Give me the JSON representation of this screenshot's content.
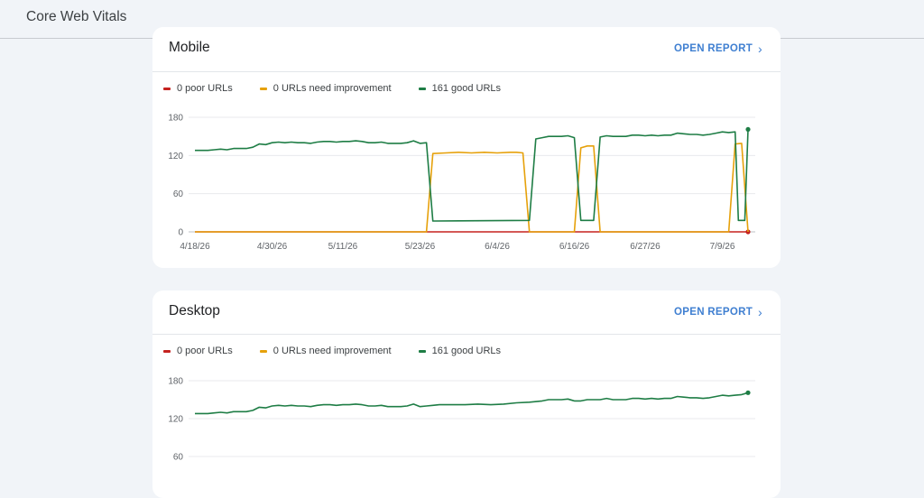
{
  "header": {
    "title": "Core Web Vitals"
  },
  "colors": {
    "poor": "#c5221f",
    "needs_improvement": "#e6a10b",
    "good": "#1e7d45",
    "link": "#3f7fd1"
  },
  "icons": {
    "open_report": "chevron-right-icon"
  },
  "cards": [
    {
      "title": "Mobile",
      "open_report_label": "OPEN REPORT",
      "legend": [
        {
          "label": "0 poor URLs",
          "color": "#c5221f"
        },
        {
          "label": "0 URLs need improvement",
          "color": "#e6a10b"
        },
        {
          "label": "161 good URLs",
          "color": "#1e7d45"
        }
      ]
    },
    {
      "title": "Desktop",
      "open_report_label": "OPEN REPORT",
      "legend": [
        {
          "label": "0 poor URLs",
          "color": "#c5221f"
        },
        {
          "label": "0 URLs need improvement",
          "color": "#e6a10b"
        },
        {
          "label": "161 good URLs",
          "color": "#1e7d45"
        }
      ]
    }
  ],
  "chart_data": [
    {
      "type": "line",
      "yticks": [
        0,
        60,
        120,
        180
      ],
      "ylim": [
        0,
        180
      ],
      "xlim": [
        0,
        86
      ],
      "xticks": [
        {
          "x": 0,
          "label": "4/18/26"
        },
        {
          "x": 12,
          "label": "4/30/26"
        },
        {
          "x": 23,
          "label": "5/11/26"
        },
        {
          "x": 35,
          "label": "5/23/26"
        },
        {
          "x": 47,
          "label": "6/4/26"
        },
        {
          "x": 59,
          "label": "6/16/26"
        },
        {
          "x": 70,
          "label": "6/27/26"
        },
        {
          "x": 82,
          "label": "7/9/26"
        }
      ],
      "grid": true,
      "series": [
        {
          "name": "0 poor URLs",
          "color": "#c5221f",
          "points": [
            [
              0,
              0
            ],
            [
              86,
              0
            ]
          ],
          "end_marker": true
        },
        {
          "name": "0 URLs need improvement",
          "color": "#e6a10b",
          "points": [
            [
              0,
              0
            ],
            [
              35,
              0
            ],
            [
              36,
              0
            ],
            [
              37,
              123
            ],
            [
              39,
              124
            ],
            [
              41,
              125
            ],
            [
              43,
              124
            ],
            [
              45,
              125
            ],
            [
              47,
              124
            ],
            [
              49,
              125
            ],
            [
              50,
              125
            ],
            [
              51,
              124
            ],
            [
              52,
              0
            ],
            [
              58,
              0
            ],
            [
              59,
              0
            ],
            [
              60,
              132
            ],
            [
              61,
              135
            ],
            [
              62,
              135
            ],
            [
              63,
              0
            ],
            [
              82,
              0
            ],
            [
              83,
              0
            ],
            [
              84,
              138
            ],
            [
              85,
              139
            ],
            [
              86,
              0
            ]
          ]
        },
        {
          "name": "161 good URLs",
          "color": "#1e7d45",
          "points": [
            [
              0,
              128
            ],
            [
              2,
              128
            ],
            [
              3,
              129
            ],
            [
              4,
              130
            ],
            [
              5,
              129
            ],
            [
              6,
              131
            ],
            [
              8,
              131
            ],
            [
              9,
              133
            ],
            [
              10,
              138
            ],
            [
              11,
              137
            ],
            [
              12,
              140
            ],
            [
              13,
              141
            ],
            [
              14,
              140
            ],
            [
              15,
              141
            ],
            [
              16,
              140
            ],
            [
              17,
              140
            ],
            [
              18,
              139
            ],
            [
              19,
              141
            ],
            [
              20,
              142
            ],
            [
              21,
              142
            ],
            [
              22,
              141
            ],
            [
              23,
              142
            ],
            [
              24,
              142
            ],
            [
              25,
              143
            ],
            [
              26,
              142
            ],
            [
              27,
              140
            ],
            [
              28,
              140
            ],
            [
              29,
              141
            ],
            [
              30,
              139
            ],
            [
              31,
              139
            ],
            [
              32,
              139
            ],
            [
              33,
              140
            ],
            [
              34,
              143
            ],
            [
              35,
              139
            ],
            [
              36,
              140
            ],
            [
              37,
              17
            ],
            [
              52,
              18
            ],
            [
              53,
              146
            ],
            [
              54,
              148
            ],
            [
              55,
              150
            ],
            [
              56,
              150
            ],
            [
              57,
              150
            ],
            [
              58,
              151
            ],
            [
              59,
              148
            ],
            [
              60,
              18
            ],
            [
              61,
              18
            ],
            [
              62,
              18
            ],
            [
              63,
              149
            ],
            [
              64,
              151
            ],
            [
              65,
              150
            ],
            [
              67,
              150
            ],
            [
              68,
              152
            ],
            [
              69,
              152
            ],
            [
              70,
              151
            ],
            [
              71,
              152
            ],
            [
              72,
              151
            ],
            [
              73,
              152
            ],
            [
              74,
              152
            ],
            [
              75,
              155
            ],
            [
              76,
              154
            ],
            [
              77,
              153
            ],
            [
              78,
              153
            ],
            [
              79,
              152
            ],
            [
              80,
              153
            ],
            [
              81,
              155
            ],
            [
              82,
              157
            ],
            [
              83,
              156
            ],
            [
              84,
              157
            ],
            [
              84.5,
              18
            ],
            [
              85.5,
              18
            ],
            [
              86,
              161
            ]
          ],
          "end_marker": true
        }
      ]
    },
    {
      "type": "line",
      "yticks": [
        60,
        120,
        180
      ],
      "ylim": [
        0,
        180
      ],
      "xlim": [
        0,
        86
      ],
      "grid": true,
      "series": [
        {
          "name": "161 good URLs",
          "color": "#1e7d45",
          "points": [
            [
              0,
              128
            ],
            [
              2,
              128
            ],
            [
              3,
              129
            ],
            [
              4,
              130
            ],
            [
              5,
              129
            ],
            [
              6,
              131
            ],
            [
              8,
              131
            ],
            [
              9,
              133
            ],
            [
              10,
              138
            ],
            [
              11,
              137
            ],
            [
              12,
              140
            ],
            [
              13,
              141
            ],
            [
              14,
              140
            ],
            [
              15,
              141
            ],
            [
              16,
              140
            ],
            [
              17,
              140
            ],
            [
              18,
              139
            ],
            [
              19,
              141
            ],
            [
              20,
              142
            ],
            [
              21,
              142
            ],
            [
              22,
              141
            ],
            [
              23,
              142
            ],
            [
              24,
              142
            ],
            [
              25,
              143
            ],
            [
              26,
              142
            ],
            [
              27,
              140
            ],
            [
              28,
              140
            ],
            [
              29,
              141
            ],
            [
              30,
              139
            ],
            [
              31,
              139
            ],
            [
              32,
              139
            ],
            [
              33,
              140
            ],
            [
              34,
              143
            ],
            [
              35,
              139
            ],
            [
              36,
              140
            ],
            [
              37,
              141
            ],
            [
              38,
              142
            ],
            [
              40,
              142
            ],
            [
              42,
              142
            ],
            [
              44,
              143
            ],
            [
              46,
              142
            ],
            [
              48,
              143
            ],
            [
              50,
              145
            ],
            [
              52,
              146
            ],
            [
              54,
              148
            ],
            [
              55,
              150
            ],
            [
              57,
              150
            ],
            [
              58,
              151
            ],
            [
              59,
              148
            ],
            [
              60,
              148
            ],
            [
              61,
              150
            ],
            [
              62,
              150
            ],
            [
              63,
              150
            ],
            [
              64,
              152
            ],
            [
              65,
              150
            ],
            [
              67,
              150
            ],
            [
              68,
              152
            ],
            [
              69,
              152
            ],
            [
              70,
              151
            ],
            [
              71,
              152
            ],
            [
              72,
              151
            ],
            [
              73,
              152
            ],
            [
              74,
              152
            ],
            [
              75,
              155
            ],
            [
              76,
              154
            ],
            [
              77,
              153
            ],
            [
              78,
              153
            ],
            [
              79,
              152
            ],
            [
              80,
              153
            ],
            [
              81,
              155
            ],
            [
              82,
              157
            ],
            [
              83,
              156
            ],
            [
              84,
              157
            ],
            [
              85,
              158
            ],
            [
              86,
              161
            ]
          ],
          "end_marker": true
        }
      ]
    }
  ]
}
